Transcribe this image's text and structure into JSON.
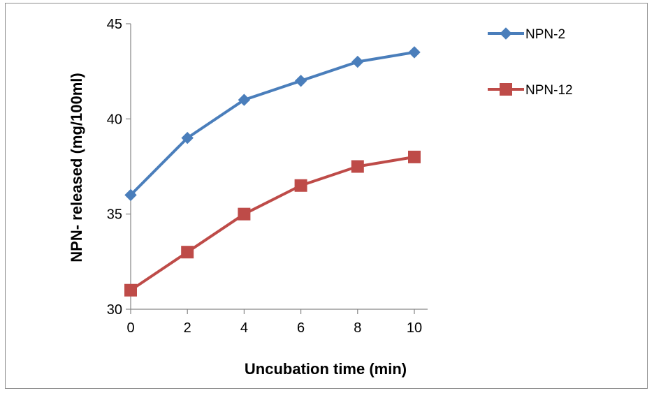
{
  "chart_data": {
    "type": "line",
    "title": "",
    "xlabel": "Uncubation time (min)",
    "ylabel": "NPN- released (mg/100ml)",
    "x": [
      0,
      2,
      4,
      6,
      8,
      10
    ],
    "xlim": [
      0,
      10
    ],
    "ylim": [
      30,
      45
    ],
    "x_ticks": [
      "0",
      "2",
      "4",
      "6",
      "8",
      "10"
    ],
    "y_ticks": [
      "30",
      "35",
      "40",
      "45"
    ],
    "grid": false,
    "legend_position": "right",
    "series": [
      {
        "name": "NPN-2",
        "values": [
          36,
          39,
          41,
          42,
          43,
          43.5
        ],
        "color": "#4a7ebb",
        "marker": "diamond"
      },
      {
        "name": "NPN-12",
        "values": [
          31,
          33,
          35,
          36.5,
          37.5,
          38
        ],
        "color": "#be4b48",
        "marker": "square"
      }
    ]
  }
}
